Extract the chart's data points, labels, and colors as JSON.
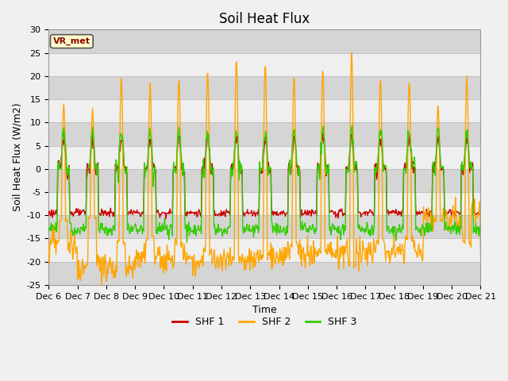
{
  "title": "Soil Heat Flux",
  "ylabel": "Soil Heat Flux (W/m2)",
  "xlabel": "Time",
  "ylim": [
    -25,
    30
  ],
  "yticks": [
    -25,
    -20,
    -15,
    -10,
    -5,
    0,
    5,
    10,
    15,
    20,
    25,
    30
  ],
  "tick_labels": [
    "Dec 6",
    "Dec 7",
    "Dec 8",
    "Dec 9",
    "Dec 10",
    "Dec 11",
    "Dec 12",
    "Dec 13",
    "Dec 14",
    "Dec 15",
    "Dec 16",
    "Dec 17",
    "Dec 18",
    "Dec 19",
    "Dec 20",
    "Dec 21"
  ],
  "tick_hours": [
    0,
    24,
    48,
    72,
    96,
    120,
    144,
    168,
    192,
    216,
    240,
    264,
    288,
    312,
    336,
    360
  ],
  "color_shf1": "#cc0000",
  "color_shf2": "#ffa500",
  "color_shf3": "#33cc00",
  "legend_label": "VR_met",
  "bg_color": "#e0e0e0",
  "title_fontsize": 12,
  "label_fontsize": 9,
  "tick_fontsize": 8,
  "linewidth": 1.0
}
